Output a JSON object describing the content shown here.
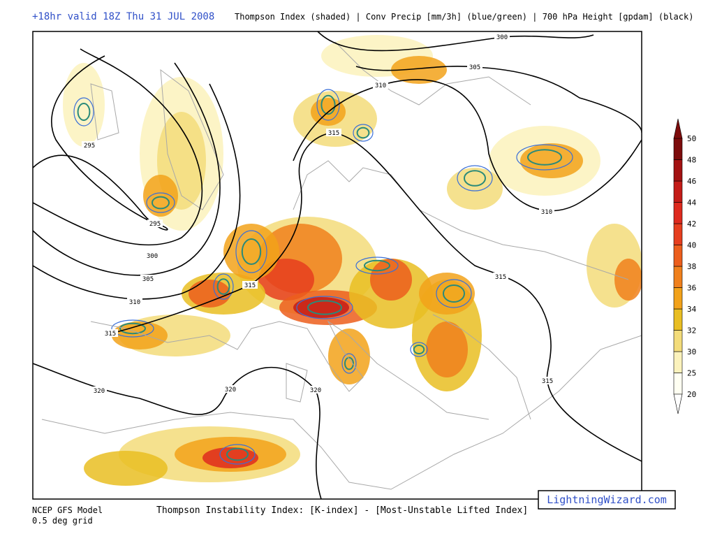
{
  "header": {
    "title": "+18hr valid 18Z Thu 31 JUL 2008",
    "subtitle": "Thompson Index (shaded) | Conv Precip [mm/3h] (blue/green) | 700 hPa Height [gpdam] (black)"
  },
  "colorbar": {
    "ticks": [
      20,
      25,
      30,
      32,
      34,
      36,
      38,
      40,
      42,
      44,
      46,
      48,
      50
    ],
    "colors": [
      "#fffff2",
      "#fbf2bc",
      "#f3dc7a",
      "#e9be22",
      "#f2a21a",
      "#f0801c",
      "#ec5e1c",
      "#e63e1e",
      "#de2a1e",
      "#c41c18",
      "#a31212",
      "#7d0c0c"
    ]
  },
  "height_labels": [
    "300",
    "305",
    "310",
    "315",
    "295",
    "295",
    "300",
    "305",
    "310",
    "315",
    "310",
    "315",
    "315",
    "320",
    "320",
    "320",
    "315"
  ],
  "footer": {
    "model": "NCEP GFS Model",
    "grid": "0.5 deg grid",
    "description": "Thompson Instability Index: [K-index] - [Most-Unstable Lifted Index]",
    "brand": "LightningWizard.com"
  }
}
